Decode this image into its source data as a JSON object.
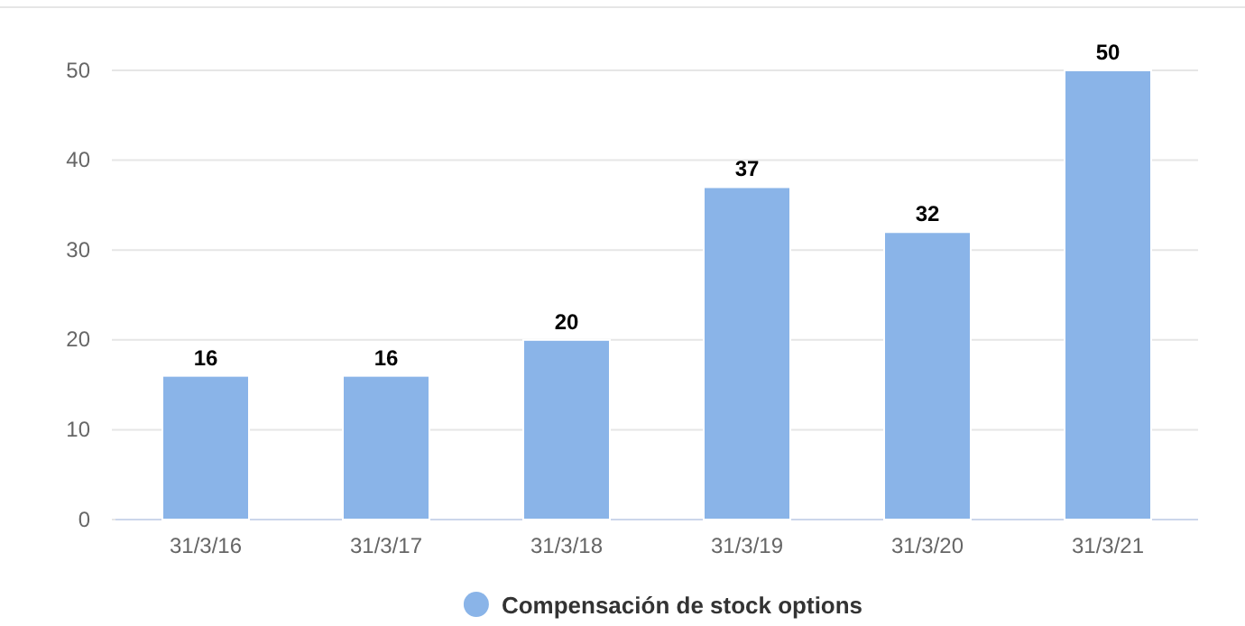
{
  "chart_data": {
    "type": "bar",
    "categories": [
      "31/3/16",
      "31/3/17",
      "31/3/18",
      "31/3/19",
      "31/3/20",
      "31/3/21"
    ],
    "series": [
      {
        "name": "Compensación de stock options",
        "color": "#8ab4e8",
        "values": [
          16,
          16,
          20,
          37,
          32,
          50
        ]
      }
    ],
    "ylim": [
      0,
      50
    ],
    "yticks": [
      0,
      10,
      20,
      30,
      40,
      50
    ],
    "grid": "y",
    "legend": "bottom",
    "data_labels": true
  }
}
